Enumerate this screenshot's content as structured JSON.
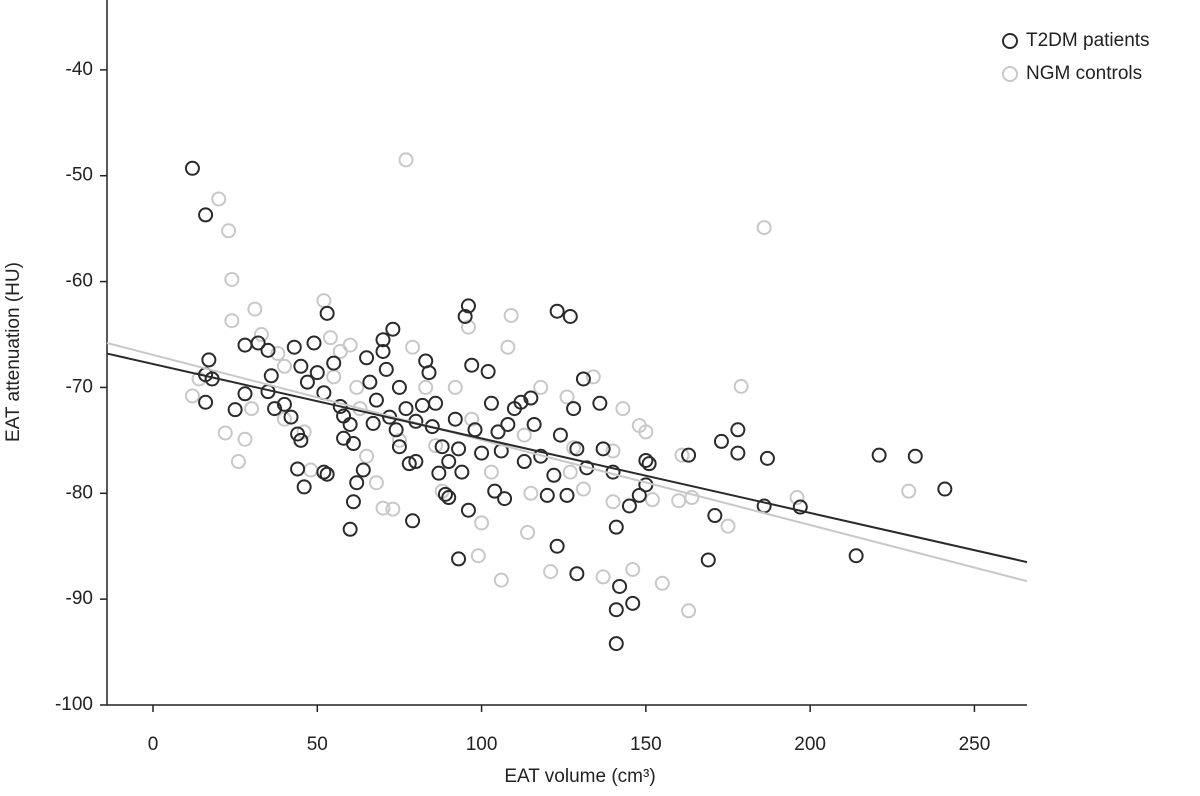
{
  "chart_data": {
    "type": "scatter",
    "xlabel": "EAT volume (cm³)",
    "ylabel": "EAT attenuation (HU)",
    "xlim": [
      -14,
      266
    ],
    "ylim": [
      -100,
      -33.4
    ],
    "xticks": [
      0,
      50,
      100,
      150,
      200,
      250
    ],
    "yticks": [
      -40,
      -50,
      -60,
      -70,
      -80,
      -90,
      -100
    ],
    "legend": "upper right",
    "series": [
      {
        "name": "T2DM patients",
        "color": "#2a2a2a",
        "x": [
          12,
          16,
          17,
          16,
          18,
          16,
          25,
          28,
          28,
          32,
          35,
          36,
          35,
          37,
          40,
          42,
          44,
          45,
          44,
          46,
          43,
          45,
          47,
          49,
          50,
          52,
          52,
          53,
          53,
          55,
          57,
          58,
          60,
          61,
          61,
          62,
          64,
          60,
          65,
          66,
          68,
          70,
          70,
          71,
          73,
          72,
          74,
          75,
          78,
          79,
          80,
          83,
          84,
          82,
          85,
          88,
          87,
          89,
          90,
          92,
          93,
          94,
          96,
          95,
          97,
          96,
          93,
          100,
          102,
          103,
          105,
          104,
          107,
          108,
          110,
          112,
          113,
          115,
          118,
          120,
          122,
          123,
          127,
          124,
          123,
          126,
          128,
          129,
          129,
          131,
          132,
          136,
          137,
          140,
          141,
          141,
          142,
          141,
          145,
          146,
          148,
          150,
          151,
          150,
          163,
          169,
          171,
          173,
          178,
          178,
          186,
          187,
          197,
          214,
          221,
          232,
          241,
          75,
          77,
          86,
          98,
          106,
          116,
          58,
          67,
          80,
          90
        ],
        "values": [
          -49.3,
          -53.7,
          -67.4,
          -68.8,
          -69.2,
          -71.4,
          -72.1,
          -70.6,
          -66,
          -65.8,
          -66.5,
          -68.9,
          -70.4,
          -72,
          -71.6,
          -72.8,
          -74.4,
          -75,
          -77.7,
          -79.4,
          -66.2,
          -68,
          -69.5,
          -65.8,
          -68.6,
          -70.5,
          -78,
          -78.2,
          -63,
          -67.7,
          -71.8,
          -72.7,
          -73.5,
          -75.3,
          -80.8,
          -79,
          -77.8,
          -83.4,
          -67.2,
          -69.5,
          -71.2,
          -65.5,
          -66.6,
          -68.3,
          -64.5,
          -72.8,
          -74,
          -75.6,
          -77.2,
          -82.6,
          -73.2,
          -67.5,
          -68.6,
          -71.7,
          -73.7,
          -75.6,
          -78.1,
          -80.1,
          -80.4,
          -73,
          -75.8,
          -78,
          -62.3,
          -63.3,
          -67.9,
          -81.6,
          -86.2,
          -76.2,
          -68.5,
          -71.5,
          -74.2,
          -79.8,
          -80.5,
          -73.5,
          -72,
          -71.4,
          -77,
          -71,
          -76.5,
          -80.2,
          -78.3,
          -62.8,
          -63.3,
          -74.5,
          -85,
          -80.2,
          -72,
          -75.8,
          -87.6,
          -69.2,
          -77.6,
          -71.5,
          -75.8,
          -78,
          -83.2,
          -91,
          -88.8,
          -94.2,
          -81.2,
          -90.4,
          -80.2,
          -76.9,
          -77.2,
          -79.2,
          -76.4,
          -86.3,
          -82.1,
          -75.1,
          -74,
          -76.2,
          -81.2,
          -76.7,
          -81.3,
          -85.9,
          -76.4,
          -76.5,
          -79.6,
          -70,
          -72,
          -71.5,
          -74,
          -76,
          -73.5,
          -74.8,
          -73.4,
          -77,
          -77
        ],
        "trend_x": [
          -14,
          266
        ],
        "trend_y": [
          -66.8,
          -86.5
        ]
      },
      {
        "name": "NGM controls",
        "color": "#c8c8c8",
        "x": [
          12,
          14,
          20,
          23,
          24,
          24,
          26,
          22,
          28,
          30,
          31,
          33,
          38,
          40,
          46,
          48,
          52,
          54,
          57,
          60,
          63,
          65,
          68,
          70,
          73,
          77,
          79,
          83,
          86,
          88,
          96,
          97,
          99,
          100,
          106,
          108,
          109,
          113,
          114,
          118,
          121,
          126,
          128,
          131,
          134,
          137,
          140,
          143,
          146,
          148,
          150,
          152,
          155,
          160,
          161,
          163,
          164,
          175,
          179,
          186,
          196,
          230,
          40,
          55,
          62,
          75,
          92,
          103,
          115,
          127,
          140
        ],
        "values": [
          -70.8,
          -69.2,
          -52.2,
          -55.2,
          -59.8,
          -63.7,
          -77,
          -74.3,
          -74.9,
          -72,
          -62.6,
          -65,
          -66.8,
          -68,
          -74.2,
          -77.8,
          -61.8,
          -65.3,
          -66.6,
          -66,
          -72,
          -76.5,
          -79,
          -81.4,
          -81.5,
          -48.5,
          -66.2,
          -70,
          -75.5,
          -79.8,
          -64.3,
          -73,
          -85.9,
          -82.8,
          -88.2,
          -66.2,
          -63.2,
          -74.5,
          -83.7,
          -70,
          -87.4,
          -70.9,
          -75.7,
          -79.6,
          -69,
          -87.9,
          -80.8,
          -72,
          -87.2,
          -73.6,
          -74.2,
          -80.6,
          -88.5,
          -80.7,
          -76.4,
          -91.1,
          -80.4,
          -83.1,
          -69.9,
          -54.9,
          -80.4,
          -79.8,
          -73,
          -69,
          -70,
          -75,
          -70,
          -78,
          -80,
          -78,
          -76
        ],
        "trend_x": [
          -14,
          266
        ],
        "trend_y": [
          -65.8,
          -88.3
        ]
      }
    ]
  }
}
